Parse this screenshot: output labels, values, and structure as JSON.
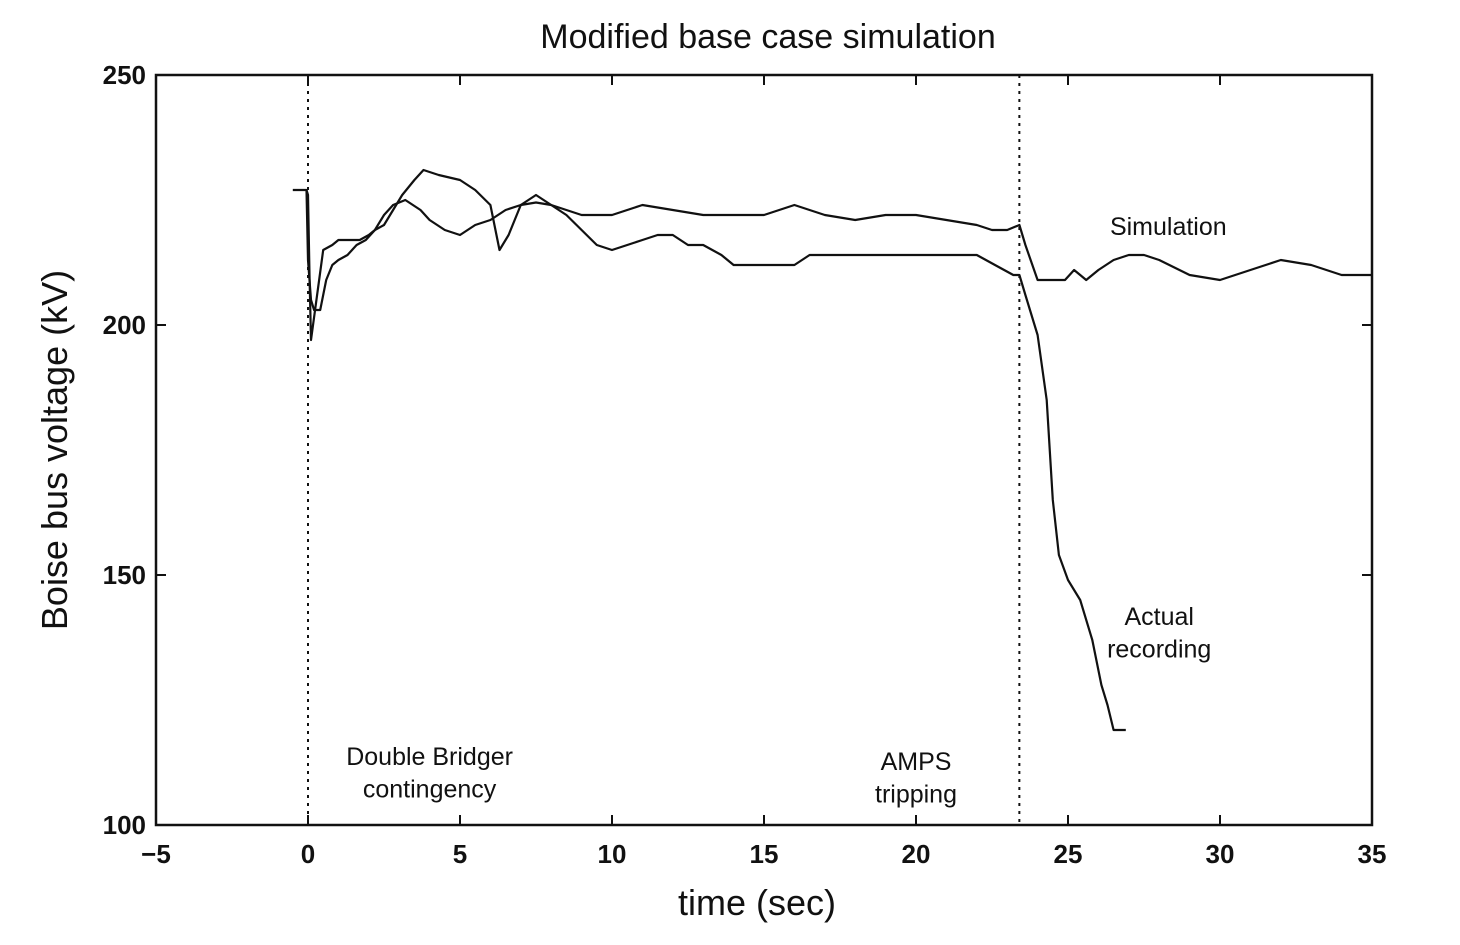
{
  "chart_data": {
    "type": "line",
    "title": "Modified base case simulation",
    "xlabel": "time (sec)",
    "ylabel": "Boise bus voltage (kV)",
    "xlim": [
      -5,
      35
    ],
    "ylim": [
      100,
      250
    ],
    "x_ticks": [
      -5,
      0,
      5,
      10,
      15,
      20,
      25,
      30,
      35
    ],
    "x_tick_labels": [
      "−5",
      "0",
      "5",
      "10",
      "15",
      "20",
      "25",
      "30",
      "35"
    ],
    "y_ticks": [
      100,
      150,
      200,
      250
    ],
    "y_tick_labels": [
      "100",
      "150",
      "200",
      "250"
    ],
    "grid": false,
    "line_color": "#111111",
    "event_lines": [
      {
        "x": 0,
        "style": "dotted"
      },
      {
        "x": 23.4,
        "style": "dotted"
      }
    ],
    "annotations": [
      {
        "lines": [
          "Double Bridger",
          "contingency"
        ],
        "x": 4,
        "y": 112
      },
      {
        "lines": [
          "AMPS",
          "tripping"
        ],
        "x": 20,
        "y": 111
      },
      {
        "lines": [
          "Simulation"
        ],
        "x": 28.3,
        "y": 218
      },
      {
        "lines": [
          "Actual",
          "recording"
        ],
        "x": 28,
        "y": 140
      }
    ],
    "series": [
      {
        "name": "Simulation",
        "x": [
          -0.5,
          -0.05,
          0.0,
          0.1,
          0.2,
          0.4,
          0.6,
          0.8,
          1.0,
          1.3,
          1.6,
          1.9,
          2.2,
          2.5,
          2.8,
          3.2,
          3.7,
          4.0,
          4.5,
          5.0,
          5.5,
          6.0,
          6.5,
          7.0,
          7.5,
          8.0,
          8.5,
          9.0,
          9.5,
          10.0,
          11.0,
          12.0,
          13.0,
          14.0,
          15.0,
          16.0,
          17.0,
          18.0,
          19.0,
          20.0,
          21.0,
          22.0,
          22.5,
          23.0,
          23.4,
          23.6,
          24.0,
          24.5,
          24.9,
          25.2,
          25.4,
          25.6,
          26.0,
          26.5,
          27.0,
          27.5,
          28.0,
          29.0,
          30.0,
          31.0,
          32.0,
          33.0,
          34.0,
          35.0
        ],
        "y": [
          227,
          227,
          213,
          205,
          203,
          203,
          209,
          212,
          213,
          214,
          216,
          217,
          219,
          222,
          224,
          225,
          223,
          221,
          219,
          218,
          220,
          221,
          223,
          224,
          224.5,
          224,
          223,
          222,
          222,
          222,
          224,
          223,
          222,
          222,
          222,
          224,
          222,
          221,
          222,
          222,
          221,
          220,
          219,
          219,
          220,
          216,
          209,
          209,
          209,
          211,
          210,
          209,
          211,
          213,
          214,
          214,
          213,
          210,
          209,
          211,
          213,
          212,
          210,
          210
        ]
      },
      {
        "name": "Actual recording",
        "x": [
          -0.05,
          0.0,
          0.05,
          0.1,
          0.5,
          0.8,
          1.0,
          1.2,
          1.4,
          1.7,
          2.0,
          2.2,
          2.5,
          2.8,
          3.1,
          3.5,
          3.8,
          4.3,
          5.0,
          5.5,
          6.0,
          6.3,
          6.6,
          7.0,
          7.5,
          8.0,
          8.5,
          9.0,
          9.5,
          10.0,
          11.0,
          11.5,
          12.0,
          12.5,
          13.0,
          13.6,
          14.0,
          16.0,
          16.5,
          20.0,
          22.0,
          22.6,
          23.2,
          23.4,
          23.6,
          24.0,
          24.3,
          24.5,
          24.7,
          25.0,
          25.4,
          25.8,
          26.1,
          26.3,
          26.5,
          26.9
        ],
        "y": [
          227,
          226,
          210,
          197,
          215,
          216,
          217,
          217,
          217,
          217,
          218,
          219,
          220,
          223,
          226,
          229,
          231,
          230,
          229,
          227,
          224,
          215,
          218,
          224,
          226,
          224,
          222,
          219,
          216,
          215,
          217,
          218,
          218,
          216,
          216,
          214,
          212,
          212,
          214,
          214,
          214,
          212,
          210,
          210,
          206,
          198,
          185,
          165,
          154,
          149,
          145,
          137,
          128,
          124,
          119,
          119
        ]
      }
    ]
  }
}
